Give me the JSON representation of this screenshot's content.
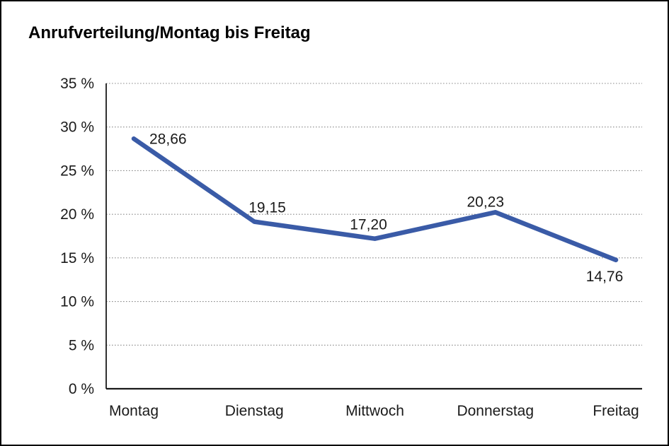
{
  "chart_data": {
    "type": "line",
    "title": "Anrufverteilung/Montag bis Freitag",
    "categories": [
      "Montag",
      "Dienstag",
      "Mittwoch",
      "Donnerstag",
      "Freitag"
    ],
    "series": [
      {
        "name": "Anrufverteilung",
        "values": [
          28.66,
          19.15,
          17.2,
          20.23,
          14.76
        ]
      }
    ],
    "value_labels": [
      "28,66",
      "19,15",
      "17,20",
      "20,23",
      "14,76"
    ],
    "xlabel": "",
    "ylabel": "",
    "ylim": [
      0,
      35
    ],
    "y_tick_step": 5,
    "y_ticks": [
      "0 %",
      "5 %",
      "10 %",
      "15 %",
      "20 %",
      "25 %",
      "30 %",
      "35 %"
    ],
    "grid": "horizontal-dotted",
    "legend_position": "none",
    "line_color": "#3A5BA7",
    "grid_color": "#8C8C8C",
    "axis_color": "#1A1A1A",
    "text_color": "#1A1A1A"
  }
}
